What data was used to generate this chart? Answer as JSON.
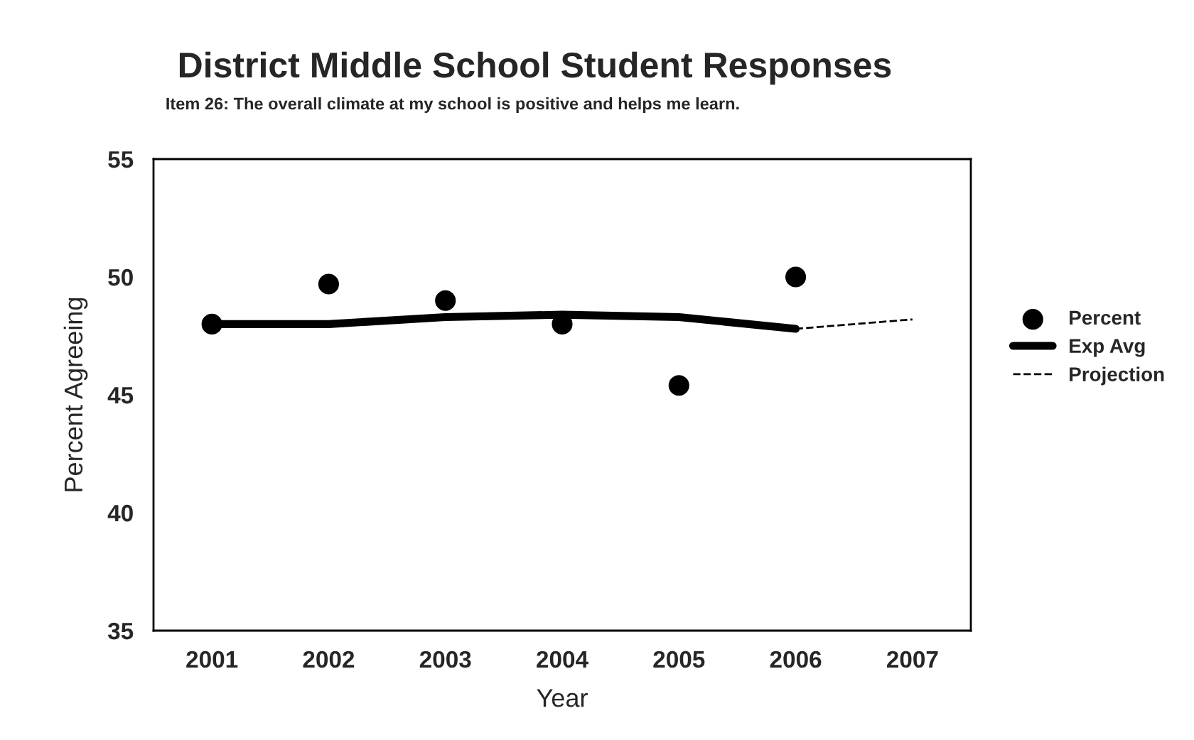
{
  "chart_data": {
    "type": "scatter",
    "title": "District Middle School Student Responses",
    "subtitle": "Item 26: The overall climate at my school is positive and helps me learn.",
    "xlabel": "Year",
    "ylabel": "Percent Agreeing",
    "categories": [
      "2001",
      "2002",
      "2003",
      "2004",
      "2005",
      "2006",
      "2007"
    ],
    "series": [
      {
        "name": "Percent",
        "color": "#000000",
        "marker": "circle",
        "values": [
          48.0,
          49.7,
          49.0,
          48.0,
          45.4,
          50.0,
          null
        ]
      },
      {
        "name": "Exp Avg",
        "type": "line",
        "color": "#000000",
        "line_style": "solid",
        "values": [
          48.0,
          48.0,
          48.3,
          48.4,
          48.3,
          47.8,
          null
        ]
      },
      {
        "name": "Projection",
        "type": "line",
        "color": "#000000",
        "line_style": "dashed",
        "values": [
          null,
          null,
          null,
          null,
          null,
          47.8,
          48.2
        ]
      }
    ],
    "ylim": [
      35,
      55
    ],
    "yticks": [
      35,
      40,
      45,
      50,
      55
    ],
    "grid": false,
    "legend": "right"
  }
}
